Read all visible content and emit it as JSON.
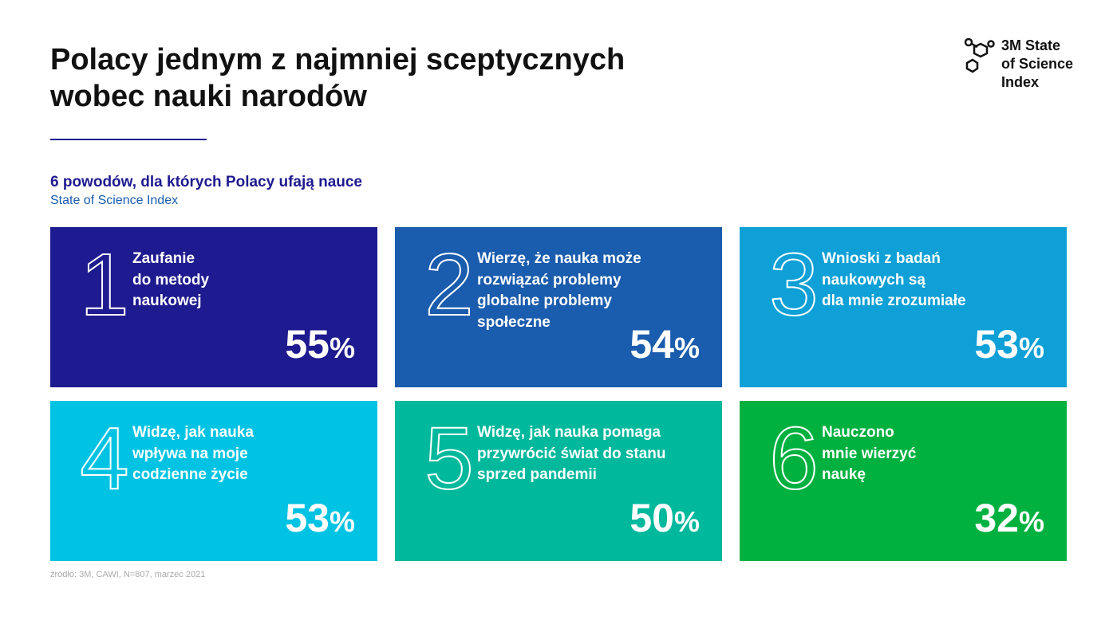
{
  "header": {
    "title": [
      "Polacy jednym z najmniej sceptycznych",
      "wobec nauki narodów"
    ],
    "logo": [
      "3M State",
      "of Science",
      "Index"
    ]
  },
  "subtitle": "6 powodów, dla których Polacy ufają nauce",
  "source_name": "State of Science Index",
  "cards": [
    {
      "number": 1,
      "lines": [
        "Zaufanie",
        "do metody",
        "naukowej"
      ],
      "value": 55,
      "unit": "%",
      "color": "#1e1a8f"
    },
    {
      "number": 2,
      "lines": [
        "Wierzę, że nauka może",
        "rozwiązać problemy",
        "globalne problemy",
        "społeczne"
      ],
      "value": 54,
      "unit": "%",
      "color": "#1a5cad"
    },
    {
      "number": 3,
      "lines": [
        "Wnioski z badań",
        "naukowych są",
        "dla mnie zrozumiałe"
      ],
      "value": 53,
      "unit": "%",
      "color": "#0ea0d6"
    },
    {
      "number": 4,
      "lines": [
        "Widzę, jak nauka",
        "wpływa na moje",
        "codzienne życie"
      ],
      "value": 53,
      "unit": "%",
      "color": "#00c3e3"
    },
    {
      "number": 5,
      "lines": [
        "Widzę, jak nauka pomaga",
        "przywrócić świat do stanu",
        "sprzed pandemii"
      ],
      "value": 50,
      "unit": "%",
      "color": "#00b89c"
    },
    {
      "number": 6,
      "lines": [
        "Nauczono",
        "mnie wierzyć",
        "naukę"
      ],
      "value": 32,
      "unit": "%",
      "color": "#00b140"
    }
  ],
  "footer": "źródło: 3M, CAWI, N=807, marzec 2021"
}
